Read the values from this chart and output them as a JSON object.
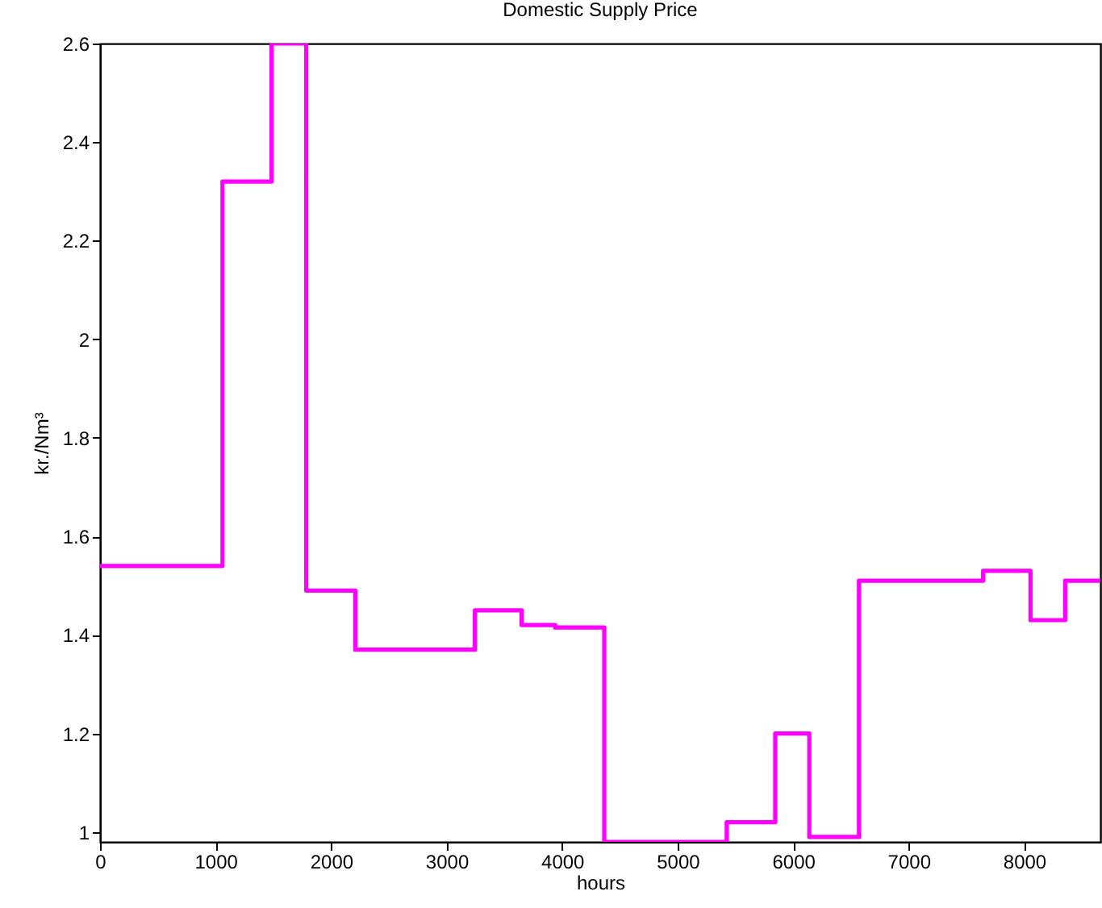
{
  "chart_data": {
    "type": "step",
    "title": "Domestic Supply Price",
    "xlabel": "hours",
    "ylabel": "kr./Nm³",
    "x": [
      0,
      1060,
      1485,
      1785,
      2210,
      3245,
      3650,
      3940,
      4365,
      5425,
      5845,
      6140,
      6570,
      7645,
      8055,
      8355,
      8660
    ],
    "series": [
      {
        "color": "#ff00ff",
        "values": [
          1.54,
          2.32,
          2.6,
          1.49,
          1.37,
          1.45,
          1.42,
          1.415,
          0.98,
          1.02,
          1.2,
          0.99,
          1.51,
          1.53,
          1.43,
          1.51,
          1.51
        ]
      }
    ],
    "xlim": [
      0,
      8660
    ],
    "ylim": [
      0.98,
      2.6
    ],
    "xticks": [
      0,
      1000,
      2000,
      3000,
      4000,
      5000,
      6000,
      7000,
      8000
    ],
    "yticks": [
      1,
      1.2,
      1.4,
      1.6,
      1.8,
      2,
      2.2,
      2.4,
      2.6
    ],
    "grid": false
  }
}
